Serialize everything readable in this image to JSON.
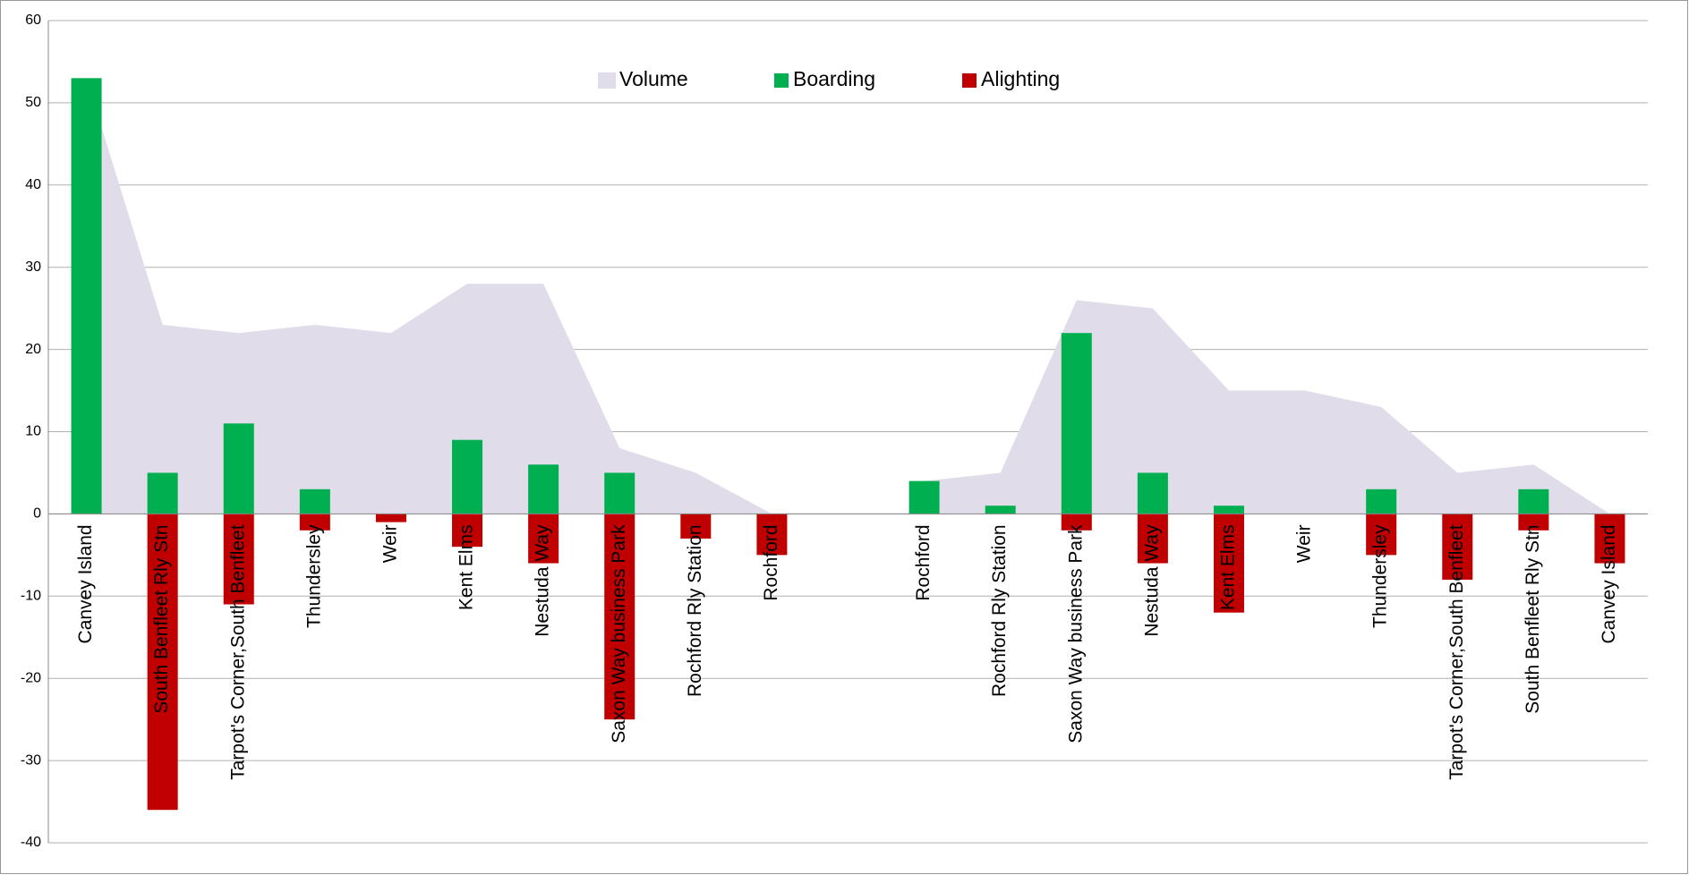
{
  "chart_data": {
    "type": "bar",
    "categories": [
      "Canvey Island",
      "South Benfleet Rly Stn",
      "Tarpot's Corner,South Benfleet",
      "Thundersley",
      "Weir",
      "Kent Elms",
      "Nestuda Way",
      "Saxon Way business Park",
      "Rochford Rly Station",
      "Rochford",
      null,
      "Rochford",
      "Rochford Rly Station",
      "Saxon Way business Park",
      "Nestuda Way",
      "Kent Elms",
      "Weir",
      "Thundersley",
      "Tarpot's Corner,South Benfleet",
      "South Benfleet Rly Stn",
      "Canvey Island"
    ],
    "series": [
      {
        "name": "Volume",
        "type": "area",
        "color": "#e1dcea",
        "values": [
          53,
          23,
          22,
          23,
          22,
          28,
          28,
          8,
          5,
          0,
          null,
          4,
          5,
          26,
          25,
          15,
          15,
          13,
          5,
          6,
          0
        ]
      },
      {
        "name": "Boarding",
        "type": "bar",
        "color": "#00b050",
        "values": [
          53,
          5,
          11,
          3,
          0,
          9,
          6,
          5,
          0,
          0,
          null,
          4,
          1,
          22,
          5,
          1,
          0,
          3,
          0,
          3,
          0
        ]
      },
      {
        "name": "Alighting",
        "type": "bar",
        "color": "#c00000",
        "values": [
          0,
          -36,
          -11,
          -2,
          -1,
          -4,
          -6,
          -25,
          -3,
          -5,
          null,
          0,
          0,
          -2,
          -6,
          -12,
          0,
          -5,
          -8,
          -2,
          -6
        ]
      }
    ],
    "ylim": [
      -40,
      60
    ],
    "yticks": [
      -40,
      -30,
      -20,
      -10,
      0,
      10,
      20,
      30,
      40,
      50,
      60
    ],
    "grid": true,
    "legend": "top"
  }
}
